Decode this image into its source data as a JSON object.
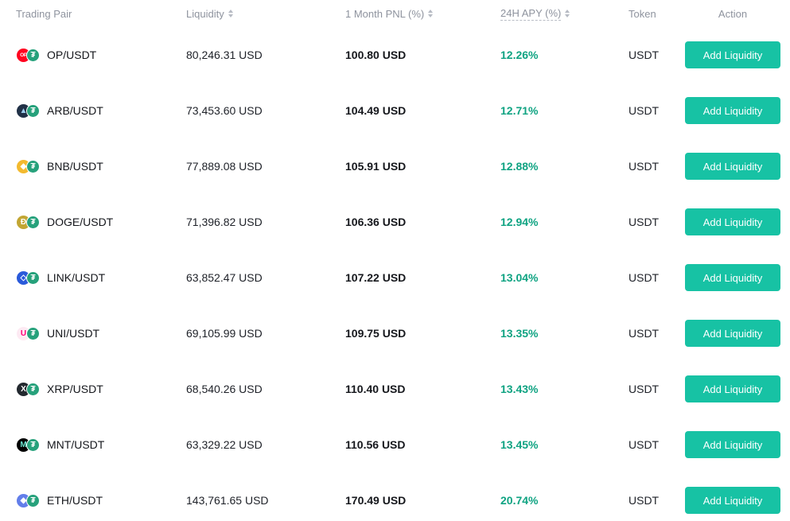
{
  "header": {
    "columns": [
      {
        "label": "Trading Pair",
        "sortable": false
      },
      {
        "label": "Liquidity",
        "sortable": true
      },
      {
        "label": "1 Month PNL (%)",
        "sortable": true
      },
      {
        "label": "24H APY (%)",
        "sortable": true,
        "active": true,
        "underline": "dashed"
      },
      {
        "label": "Token",
        "sortable": false
      },
      {
        "label": "Action",
        "sortable": false
      }
    ]
  },
  "rows": [
    {
      "pair": "OP/USDT",
      "base_icon": "op-coin-icon",
      "base_glyph": "OP",
      "base_bg": "#ff0420",
      "base_fg": "#ffffff",
      "liquidity": "80,246.31 USD",
      "pnl": "100.80 USD",
      "apy": "12.26%",
      "token": "USDT",
      "action_label": "Add Liquidity"
    },
    {
      "pair": "ARB/USDT",
      "base_icon": "arb-coin-icon",
      "base_glyph": "▲",
      "base_bg": "#213147",
      "base_fg": "#9dcced",
      "liquidity": "73,453.60 USD",
      "pnl": "104.49 USD",
      "apy": "12.71%",
      "token": "USDT",
      "action_label": "Add Liquidity"
    },
    {
      "pair": "BNB/USDT",
      "base_icon": "bnb-coin-icon",
      "base_glyph": "◆",
      "base_bg": "#f3ba2f",
      "base_fg": "#ffffff",
      "liquidity": "77,889.08 USD",
      "pnl": "105.91 USD",
      "apy": "12.88%",
      "token": "USDT",
      "action_label": "Add Liquidity"
    },
    {
      "pair": "DOGE/USDT",
      "base_icon": "doge-coin-icon",
      "base_glyph": "Ð",
      "base_bg": "#c2a633",
      "base_fg": "#ffffff",
      "liquidity": "71,396.82 USD",
      "pnl": "106.36 USD",
      "apy": "12.94%",
      "token": "USDT",
      "action_label": "Add Liquidity"
    },
    {
      "pair": "LINK/USDT",
      "base_icon": "link-coin-icon",
      "base_glyph": "◇",
      "base_bg": "#2a5ada",
      "base_fg": "#ffffff",
      "liquidity": "63,852.47 USD",
      "pnl": "107.22 USD",
      "apy": "13.04%",
      "token": "USDT",
      "action_label": "Add Liquidity"
    },
    {
      "pair": "UNI/USDT",
      "base_icon": "uni-coin-icon",
      "base_glyph": "U",
      "base_bg": "#fdeaf3",
      "base_fg": "#ff007a",
      "liquidity": "69,105.99 USD",
      "pnl": "109.75 USD",
      "apy": "13.35%",
      "token": "USDT",
      "action_label": "Add Liquidity"
    },
    {
      "pair": "XRP/USDT",
      "base_icon": "xrp-coin-icon",
      "base_glyph": "X",
      "base_bg": "#23292f",
      "base_fg": "#ffffff",
      "liquidity": "68,540.26 USD",
      "pnl": "110.40 USD",
      "apy": "13.43%",
      "token": "USDT",
      "action_label": "Add Liquidity"
    },
    {
      "pair": "MNT/USDT",
      "base_icon": "mnt-coin-icon",
      "base_glyph": "M",
      "base_bg": "#000000",
      "base_fg": "#6be6cf",
      "liquidity": "63,329.22 USD",
      "pnl": "110.56 USD",
      "apy": "13.45%",
      "token": "USDT",
      "action_label": "Add Liquidity"
    },
    {
      "pair": "ETH/USDT",
      "base_icon": "eth-coin-icon",
      "base_glyph": "◆",
      "base_bg": "#627eea",
      "base_fg": "#ffffff",
      "liquidity": "143,761.65 USD",
      "pnl": "170.49 USD",
      "apy": "20.74%",
      "token": "USDT",
      "action_label": "Add Liquidity"
    }
  ],
  "icons": {
    "usdt_glyph": "₮",
    "usdt_bg": "#26a17b",
    "sort_icon": "sort-arrows-icon"
  },
  "colors": {
    "button_bg": "#17c2a4",
    "button_text": "#ffffff",
    "apy_text": "#0fa382",
    "header_text": "#8e939e",
    "body_text": "#1e2128",
    "usdt_icon": "#26a17b"
  }
}
